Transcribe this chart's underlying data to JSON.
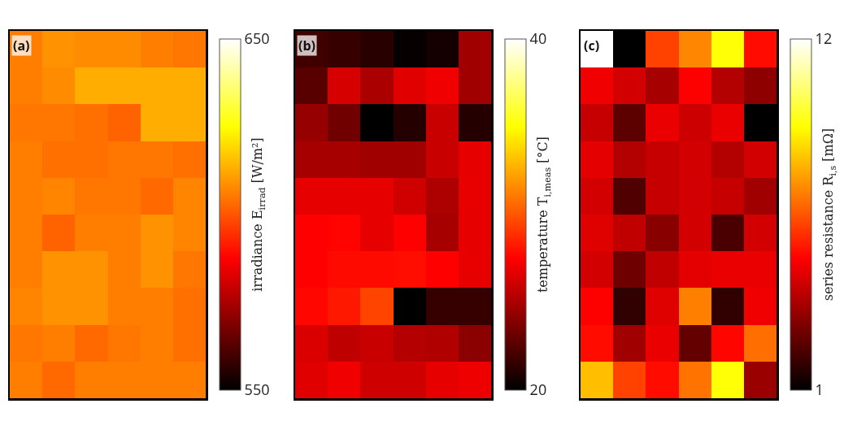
{
  "chart_data": [
    {
      "type": "heatmap",
      "annotations": [
        "(a)"
      ],
      "clabel": "irradiance E$_{irrad}$ [W/m²]",
      "clim": [
        550,
        650
      ],
      "cticks": [
        550,
        650
      ],
      "categories": [
        null,
        null,
        null,
        null,
        null,
        null
      ],
      "y_categories": [
        null,
        null,
        null,
        null,
        null,
        null,
        null,
        null,
        null,
        null
      ],
      "cells": [
        [
          606,
          609,
          608,
          608,
          606,
          605
        ],
        [
          606,
          608,
          613,
          613,
          613,
          613
        ],
        [
          605,
          605,
          604,
          602,
          613,
          613
        ],
        [
          606,
          604,
          604,
          605,
          605,
          604
        ],
        [
          606,
          607,
          605,
          605,
          603,
          607
        ],
        [
          606,
          602,
          606,
          606,
          609,
          607
        ],
        [
          606,
          609,
          609,
          606,
          609,
          605
        ],
        [
          607,
          609,
          609,
          606,
          606,
          604
        ],
        [
          605,
          606,
          603,
          605,
          606,
          604
        ],
        [
          606,
          603,
          606,
          606,
          606,
          606
        ]
      ]
    },
    {
      "type": "heatmap",
      "annotations": [
        "(b)"
      ],
      "clabel": "temperature T$_{i,meas}$ [°C]",
      "clim": [
        20,
        40
      ],
      "cticks": [
        20,
        40
      ],
      "categories": [
        null,
        null,
        null,
        null,
        null,
        null
      ],
      "y_categories": [
        null,
        null,
        null,
        null,
        null,
        null,
        null,
        null,
        null,
        null
      ],
      "cells": [
        [
          21.9,
          21.6,
          21.2,
          20.2,
          20.6,
          24.7
        ],
        [
          22.6,
          26.3,
          25,
          26.6,
          27.1,
          24.7
        ],
        [
          24.4,
          23.3,
          20,
          21.1,
          25.9,
          21.1
        ],
        [
          24.9,
          24.9,
          24.7,
          24.7,
          25.9,
          26.8
        ],
        [
          26.8,
          26.8,
          26.8,
          26.1,
          25.1,
          26.8
        ],
        [
          27.5,
          27.6,
          26.8,
          27.5,
          24.9,
          26.8
        ],
        [
          27.5,
          27.8,
          27.8,
          27.9,
          27.5,
          26.8
        ],
        [
          27.7,
          28.2,
          29.5,
          20,
          21.6,
          21.6
        ],
        [
          26.4,
          25.6,
          25.9,
          25.3,
          25.2,
          24.1
        ],
        [
          26.6,
          27.1,
          26.1,
          26.1,
          26.8,
          27
        ]
      ]
    },
    {
      "type": "heatmap",
      "annotations": [
        "(c)"
      ],
      "clabel": "series resistance R$_{i,s}$ [mΩ]",
      "clim": [
        1,
        12
      ],
      "cticks": [
        1,
        12
      ],
      "categories": [
        null,
        null,
        null,
        null,
        null,
        null
      ],
      "y_categories": [
        null,
        null,
        null,
        null,
        null,
        null,
        null,
        null,
        null,
        null
      ],
      "cells": [
        [
          12,
          1,
          6.2,
          7.3,
          9.3,
          5.3
        ],
        [
          4.9,
          4.4,
          3.7,
          5.1,
          3.9,
          3.3
        ],
        [
          4.2,
          2.5,
          4.8,
          4.3,
          4.8,
          1
        ],
        [
          4.7,
          3.9,
          4.2,
          4.4,
          3.9,
          4.4
        ],
        [
          4.4,
          2.3,
          4.2,
          4.4,
          4.2,
          3.6
        ],
        [
          4.6,
          4.1,
          3.2,
          4.4,
          2.2,
          4.4
        ],
        [
          4.4,
          2.8,
          4.1,
          4.7,
          4.8,
          4.8
        ],
        [
          5.1,
          1.8,
          4.6,
          7.2,
          1.8,
          4.9
        ],
        [
          5.3,
          3.6,
          4.8,
          2.6,
          5.2,
          6.9
        ],
        [
          8.2,
          6.2,
          5.3,
          7,
          9.3,
          3.5
        ]
      ]
    }
  ]
}
